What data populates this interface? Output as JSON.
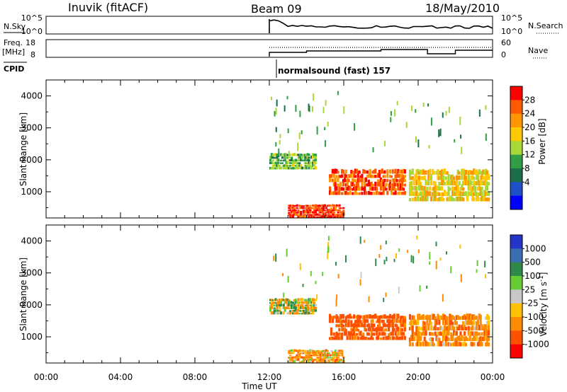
{
  "header": {
    "station": "Inuvik (fitACF)",
    "beam": "Beam 09",
    "date": "18/May/2010"
  },
  "summary": {
    "nsky_label": "N.Sky",
    "nsearch_label": "N.Search",
    "noise_ticks_left": [
      "10^5",
      "10^0"
    ],
    "noise_ticks_right": [
      "10^5",
      "10^0"
    ],
    "freq_label_1": "Freq.",
    "freq_label_2": "[MHz]",
    "freq_ticks": [
      "18",
      "8"
    ],
    "nave_label": "Nave",
    "nave_ticks": [
      "60",
      "0"
    ],
    "cpid_label": "CPID",
    "cpid_text": "normalsound (fast) 157"
  },
  "xaxis": {
    "label": "Time UT",
    "ticks": [
      "00:00",
      "04:00",
      "08:00",
      "12:00",
      "16:00",
      "20:00",
      "00:00"
    ]
  },
  "colorbars": {
    "power": {
      "label": "Power [dB]",
      "ticks": [
        "28",
        "24",
        "20",
        "16",
        "12",
        "8",
        "4"
      ],
      "colors": [
        "#ff0000",
        "#ff5a00",
        "#ff9600",
        "#ffc800",
        "#a8d838",
        "#2f9e44",
        "#1a6e48",
        "#1e50c8",
        "#0000ff"
      ]
    },
    "velocity": {
      "label": "Velocity [m s",
      "label_sup": "-1",
      "label_end": "]",
      "ticks": [
        "1000",
        "500",
        "100",
        "25",
        "-25",
        "-100",
        "-500",
        "-1000"
      ],
      "colors": [
        "#2433c8",
        "#3a6fb4",
        "#2f8a4a",
        "#66cc33",
        "#c8c8c8",
        "#ffc000",
        "#ff8c00",
        "#ff5000",
        "#ff0000"
      ]
    }
  },
  "chart_data": [
    {
      "type": "heatmap",
      "name": "power",
      "ylabel": "Slant Range [km]",
      "xlabel": "",
      "xlim": [
        "00:00",
        "24:00"
      ],
      "ylim": [
        180,
        4500
      ],
      "yticks": [
        1000,
        2000,
        3000,
        4000
      ],
      "colorbar_label": "Power [dB]",
      "colorbar_ticks": [
        4,
        8,
        12,
        16,
        20,
        24,
        28
      ],
      "echo_regions": [
        {
          "t_start": 12.0,
          "t_end": 14.5,
          "range_start": 1700,
          "range_end": 2200,
          "level_db": 10
        },
        {
          "t_start": 15.2,
          "t_end": 19.3,
          "range_start": 900,
          "range_end": 1700,
          "level_db": 24
        },
        {
          "t_start": 19.5,
          "t_end": 23.8,
          "range_start": 700,
          "range_end": 1700,
          "level_db": 16
        },
        {
          "t_start": 13.0,
          "t_end": 16.0,
          "range_start": 180,
          "range_end": 600,
          "level_db": 26
        }
      ]
    },
    {
      "type": "heatmap",
      "name": "velocity",
      "ylabel": "Slant Range [km]",
      "xlabel": "Time UT",
      "xlim": [
        "00:00",
        "24:00"
      ],
      "ylim": [
        180,
        4500
      ],
      "yticks": [
        1000,
        2000,
        3000,
        4000
      ],
      "colorbar_label": "Velocity [m s^-1]",
      "colorbar_ticks": [
        1000,
        500,
        100,
        25,
        -25,
        -100,
        -500,
        -1000
      ],
      "echo_regions": [
        {
          "t_start": 12.0,
          "t_end": 14.5,
          "range_start": 1700,
          "range_end": 2200,
          "velocity": 0
        },
        {
          "t_start": 15.2,
          "t_end": 19.3,
          "range_start": 900,
          "range_end": 1700,
          "velocity": -400
        },
        {
          "t_start": 19.5,
          "t_end": 23.8,
          "range_start": 700,
          "range_end": 1700,
          "velocity": -200
        },
        {
          "t_start": 13.0,
          "t_end": 16.0,
          "range_start": 180,
          "range_end": 600,
          "velocity": -150
        }
      ]
    }
  ]
}
